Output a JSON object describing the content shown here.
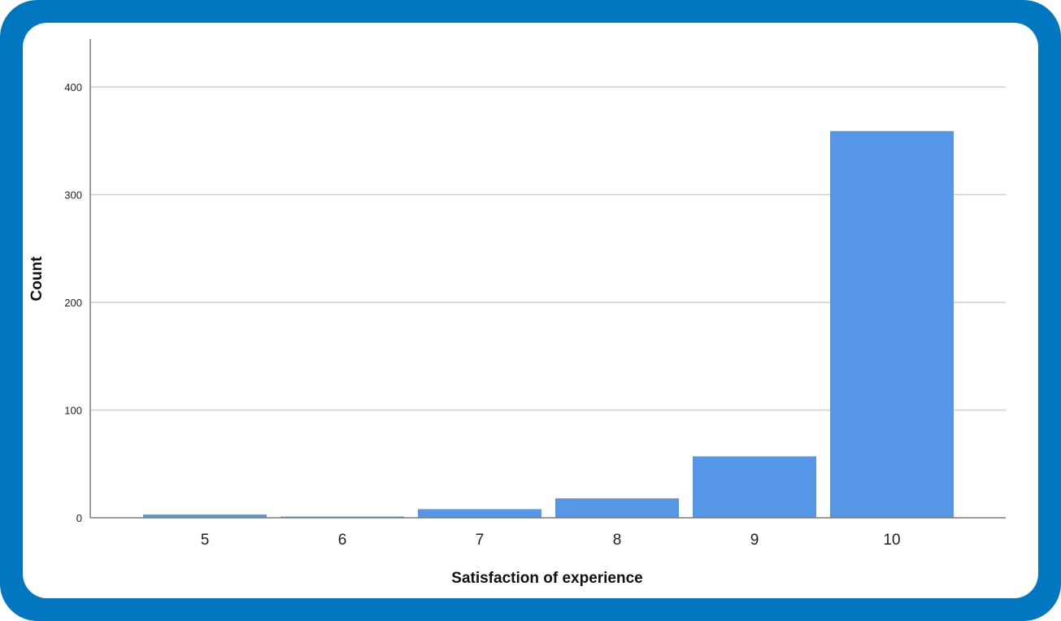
{
  "colors": {
    "frame": "#0277c1",
    "bar": "#5596e6",
    "grid": "#cfcfcf",
    "axis": "#7a7a7a"
  },
  "chart_data": {
    "type": "bar",
    "title": "",
    "xlabel": "Satisfaction of experience",
    "ylabel": "Count",
    "categories": [
      "5",
      "6",
      "7",
      "8",
      "9",
      "10"
    ],
    "values": [
      3,
      1,
      8,
      18,
      57,
      359
    ],
    "ylim": [
      0,
      440
    ],
    "yticks": [
      0,
      100,
      200,
      300,
      400
    ],
    "grid": true,
    "legend": "none"
  }
}
